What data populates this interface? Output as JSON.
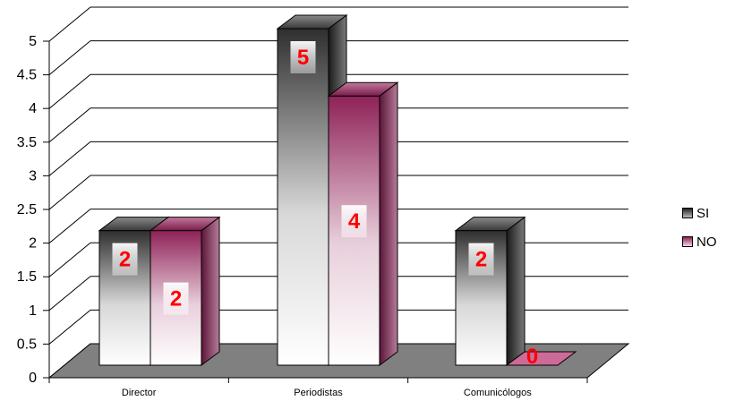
{
  "chart_data": {
    "type": "bar",
    "categories": [
      "Director",
      "Periodistas",
      "Comunicólogos"
    ],
    "series": [
      {
        "name": "SI",
        "values": [
          2,
          5,
          2
        ],
        "color": "#404040"
      },
      {
        "name": "NO",
        "values": [
          2,
          4,
          0
        ],
        "color": "#9b2a5e"
      }
    ],
    "data_labels": [
      [
        "2",
        "5",
        "2"
      ],
      [
        "2",
        "4",
        "0"
      ]
    ],
    "yticks": [
      "0",
      "0.5",
      "1",
      "1.5",
      "2",
      "2.5",
      "3",
      "3.5",
      "4",
      "4.5",
      "5"
    ],
    "ylim": [
      0,
      5
    ],
    "grid": true,
    "legend": "right",
    "label_color": "#ff0000",
    "floor_color": "#808080"
  }
}
